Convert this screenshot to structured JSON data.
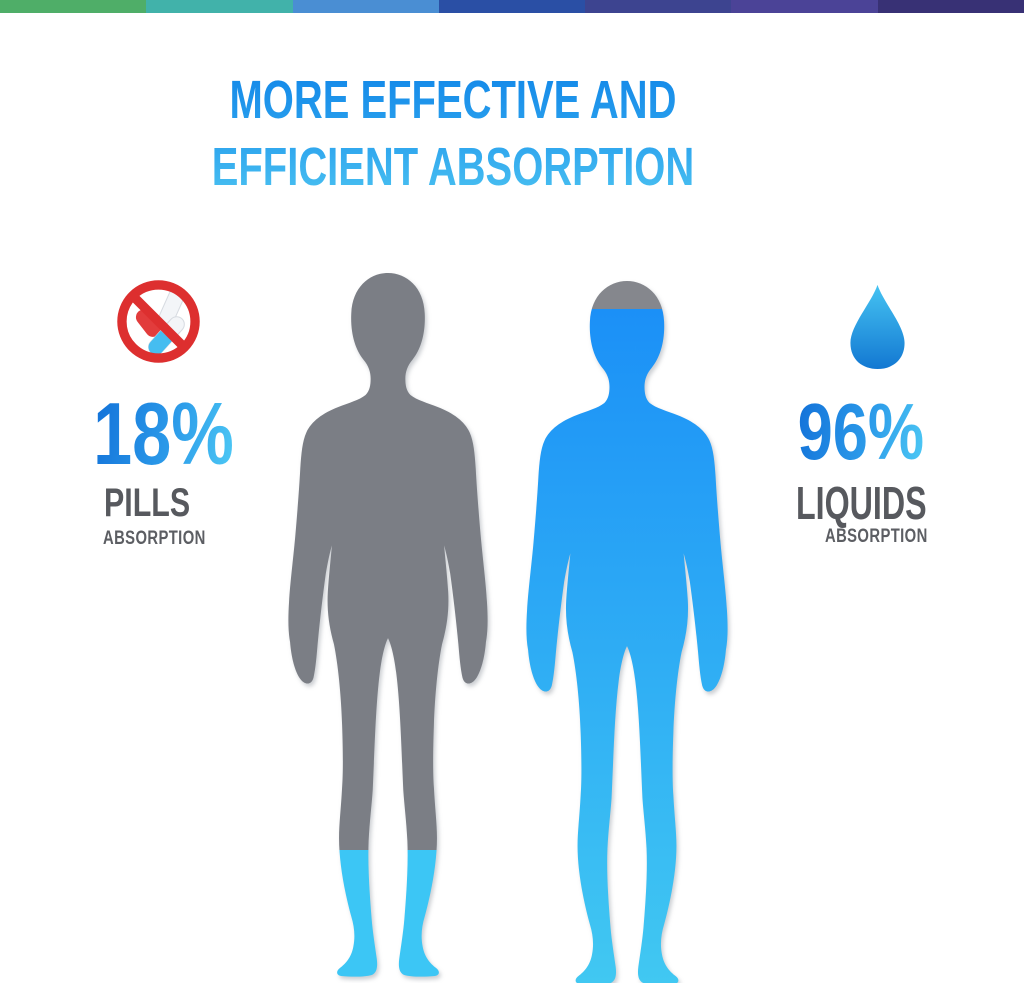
{
  "header_bar": {
    "segment_colors": [
      "#4fae68",
      "#41b2aa",
      "#4a8ed3",
      "#2a4fa5",
      "#3d4490",
      "#4b4397",
      "#383175"
    ]
  },
  "title": {
    "line1": "MORE EFFECTIVE AND",
    "line2": "EFFICIENT ABSORPTION"
  },
  "left_panel": {
    "icon": "no-pills-icon",
    "value": "18%",
    "label": "PILLS",
    "sublabel": "ABSORPTION"
  },
  "right_panel": {
    "icon": "water-drop-icon",
    "value": "96%",
    "label": "LIQUIDS",
    "sublabel": "ABSORPTION"
  },
  "chart_data": {
    "type": "bar",
    "title": "MORE EFFECTIVE AND EFFICIENT ABSORPTION",
    "categories": [
      "PILLS",
      "LIQUIDS"
    ],
    "values": [
      18,
      96
    ],
    "unit": "%",
    "representation": "two standing human silhouettes filled from the bottom up to the absorption percentage",
    "legend_position": "none",
    "colors": {
      "body_unfilled_gray": "#7b7e85",
      "fill_left_cyan": "#3cc6f5",
      "fill_right_top_blue": "#1b90f7",
      "fill_right_bottom_cyan": "#41c8f2",
      "title_blue_top": "#1186e8",
      "title_blue_bottom": "#4cc3f1",
      "label_gray": "#57595e",
      "prohibition_red": "#dd2f2f"
    }
  }
}
